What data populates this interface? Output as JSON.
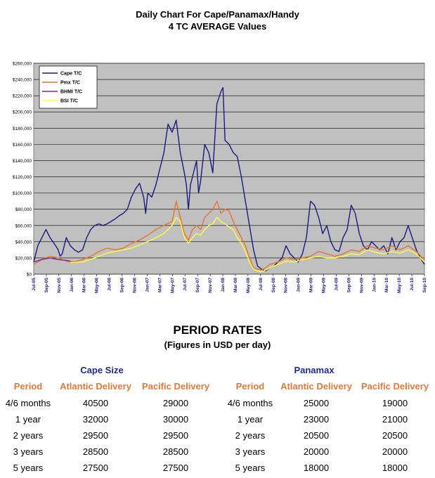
{
  "header": {
    "title_line1": "Daily Chart For Cape/Panamax/Handy",
    "title_line2": "4 TC AVERAGE Values"
  },
  "chart_data": {
    "type": "line",
    "ylim": [
      0,
      260000
    ],
    "y_ticks": [
      0,
      20000,
      40000,
      60000,
      80000,
      100000,
      120000,
      140000,
      160000,
      180000,
      200000,
      220000,
      240000,
      260000
    ],
    "y_tick_labels": [
      "$0",
      "$20,000",
      "$40,000",
      "$60,000",
      "$80,000",
      "$100,000",
      "$120,000",
      "$140,000",
      "$160,000",
      "$180,000",
      "$200,000",
      "$220,000",
      "$240,000",
      "$260,000"
    ],
    "x_tick_labels": [
      "Jul-05",
      "Sep-05",
      "Nov-05",
      "Jan-06",
      "Mar-06",
      "May-06",
      "Jul-06",
      "Sep-06",
      "Nov-06",
      "Jan-07",
      "Mar-07",
      "May-07",
      "Jul-07",
      "Sep-07",
      "Nov-07",
      "Jan-08",
      "Mar-08",
      "May-08",
      "Jul-08",
      "Sep-08",
      "Nov-08",
      "Jan-09",
      "Mar-09",
      "May-09",
      "Jul-09",
      "Sep-09",
      "Nov-09",
      "Jan-10",
      "Mar-10",
      "May-10",
      "Jul-10",
      "Sep-10"
    ],
    "grid": true,
    "legend_position": "top-left",
    "background": "#c0c0c0",
    "series": [
      {
        "name": "Cape T/C",
        "color": "#1a1a80",
        "points": [
          [
            0,
            15000
          ],
          [
            1,
            35000
          ],
          [
            2,
            45000
          ],
          [
            3,
            55000
          ],
          [
            4,
            45000
          ],
          [
            5,
            38000
          ],
          [
            6,
            30000
          ],
          [
            6.5,
            22000
          ],
          [
            7,
            25000
          ],
          [
            8,
            45000
          ],
          [
            9,
            35000
          ],
          [
            10,
            30000
          ],
          [
            11,
            27000
          ],
          [
            12,
            30000
          ],
          [
            13,
            45000
          ],
          [
            14,
            55000
          ],
          [
            15,
            60000
          ],
          [
            16,
            62000
          ],
          [
            17,
            60000
          ],
          [
            18,
            62000
          ],
          [
            19,
            65000
          ],
          [
            20,
            68000
          ],
          [
            21,
            72000
          ],
          [
            22,
            75000
          ],
          [
            23,
            80000
          ],
          [
            24,
            95000
          ],
          [
            25,
            105000
          ],
          [
            26,
            112000
          ],
          [
            27,
            95000
          ],
          [
            27.5,
            75000
          ],
          [
            28,
            100000
          ],
          [
            29,
            95000
          ],
          [
            30,
            110000
          ],
          [
            31,
            130000
          ],
          [
            32,
            150000
          ],
          [
            33,
            185000
          ],
          [
            34,
            175000
          ],
          [
            35,
            190000
          ],
          [
            36,
            150000
          ],
          [
            37,
            125000
          ],
          [
            37.5,
            110000
          ],
          [
            38,
            80000
          ],
          [
            38.5,
            110000
          ],
          [
            39,
            120000
          ],
          [
            40,
            140000
          ],
          [
            40.5,
            100000
          ],
          [
            41,
            115000
          ],
          [
            42,
            160000
          ],
          [
            43,
            150000
          ],
          [
            44,
            125000
          ],
          [
            45,
            210000
          ],
          [
            46,
            225000
          ],
          [
            46.5,
            230000
          ],
          [
            47,
            165000
          ],
          [
            48,
            160000
          ],
          [
            49,
            150000
          ],
          [
            50,
            145000
          ],
          [
            51,
            120000
          ],
          [
            52,
            90000
          ],
          [
            53,
            60000
          ],
          [
            54,
            30000
          ],
          [
            55,
            10000
          ],
          [
            56,
            6000
          ],
          [
            57,
            4000
          ],
          [
            58,
            8000
          ],
          [
            59,
            10000
          ],
          [
            60,
            15000
          ],
          [
            61,
            20000
          ],
          [
            62,
            35000
          ],
          [
            63,
            25000
          ],
          [
            64,
            20000
          ],
          [
            65,
            15000
          ],
          [
            66,
            25000
          ],
          [
            67,
            45000
          ],
          [
            68,
            90000
          ],
          [
            69,
            85000
          ],
          [
            70,
            70000
          ],
          [
            71,
            50000
          ],
          [
            72,
            60000
          ],
          [
            73,
            40000
          ],
          [
            74,
            30000
          ],
          [
            75,
            28000
          ],
          [
            76,
            45000
          ],
          [
            77,
            55000
          ],
          [
            78,
            85000
          ],
          [
            79,
            75000
          ],
          [
            80,
            50000
          ],
          [
            81,
            35000
          ],
          [
            82,
            30000
          ],
          [
            83,
            40000
          ],
          [
            84,
            35000
          ],
          [
            85,
            30000
          ],
          [
            86,
            35000
          ],
          [
            87,
            25000
          ],
          [
            88,
            45000
          ],
          [
            89,
            30000
          ],
          [
            90,
            40000
          ],
          [
            91,
            45000
          ],
          [
            92,
            60000
          ],
          [
            93,
            45000
          ],
          [
            94,
            30000
          ],
          [
            95,
            20000
          ],
          [
            96,
            12000
          ]
        ]
      },
      {
        "name": "Pmx T/C",
        "color": "#e8742a",
        "points": [
          [
            0,
            12000
          ],
          [
            2,
            18000
          ],
          [
            4,
            22000
          ],
          [
            6,
            20000
          ],
          [
            8,
            16000
          ],
          [
            10,
            15000
          ],
          [
            12,
            18000
          ],
          [
            14,
            22000
          ],
          [
            16,
            28000
          ],
          [
            18,
            32000
          ],
          [
            20,
            30000
          ],
          [
            22,
            32000
          ],
          [
            24,
            38000
          ],
          [
            26,
            42000
          ],
          [
            28,
            48000
          ],
          [
            30,
            55000
          ],
          [
            32,
            60000
          ],
          [
            34,
            65000
          ],
          [
            35,
            90000
          ],
          [
            36,
            70000
          ],
          [
            37,
            50000
          ],
          [
            38,
            42000
          ],
          [
            39,
            55000
          ],
          [
            40,
            60000
          ],
          [
            41,
            55000
          ],
          [
            42,
            70000
          ],
          [
            43,
            75000
          ],
          [
            44,
            80000
          ],
          [
            45,
            90000
          ],
          [
            46,
            75000
          ],
          [
            47,
            80000
          ],
          [
            48,
            78000
          ],
          [
            49,
            65000
          ],
          [
            50,
            55000
          ],
          [
            51,
            45000
          ],
          [
            52,
            35000
          ],
          [
            53,
            20000
          ],
          [
            54,
            8000
          ],
          [
            55,
            6000
          ],
          [
            56,
            5000
          ],
          [
            57,
            8000
          ],
          [
            58,
            12000
          ],
          [
            60,
            15000
          ],
          [
            62,
            20000
          ],
          [
            64,
            18000
          ],
          [
            66,
            20000
          ],
          [
            68,
            22000
          ],
          [
            70,
            28000
          ],
          [
            72,
            25000
          ],
          [
            74,
            22000
          ],
          [
            76,
            25000
          ],
          [
            78,
            30000
          ],
          [
            80,
            28000
          ],
          [
            82,
            35000
          ],
          [
            84,
            32000
          ],
          [
            86,
            30000
          ],
          [
            88,
            35000
          ],
          [
            90,
            30000
          ],
          [
            92,
            35000
          ],
          [
            94,
            28000
          ],
          [
            96,
            18000
          ]
        ]
      },
      {
        "name": "BHMI T/C",
        "color": "#7a2c8c",
        "points": [
          [
            0,
            15000
          ],
          [
            2,
            18000
          ],
          [
            4,
            20000
          ],
          [
            6,
            18000
          ],
          [
            8,
            17000
          ],
          [
            9,
            16000
          ]
        ]
      },
      {
        "name": "BSI T/C",
        "color": "#ffff40",
        "points": [
          [
            9,
            14000
          ],
          [
            12,
            15000
          ],
          [
            14,
            18000
          ],
          [
            16,
            22000
          ],
          [
            18,
            26000
          ],
          [
            20,
            28000
          ],
          [
            22,
            30000
          ],
          [
            24,
            32000
          ],
          [
            26,
            36000
          ],
          [
            28,
            40000
          ],
          [
            30,
            45000
          ],
          [
            32,
            50000
          ],
          [
            34,
            60000
          ],
          [
            35,
            70000
          ],
          [
            36,
            65000
          ],
          [
            37,
            45000
          ],
          [
            38,
            38000
          ],
          [
            39,
            45000
          ],
          [
            40,
            50000
          ],
          [
            41,
            48000
          ],
          [
            42,
            55000
          ],
          [
            43,
            60000
          ],
          [
            44,
            62000
          ],
          [
            45,
            70000
          ],
          [
            46,
            65000
          ],
          [
            47,
            62000
          ],
          [
            48,
            58000
          ],
          [
            49,
            55000
          ],
          [
            50,
            45000
          ],
          [
            51,
            38000
          ],
          [
            52,
            28000
          ],
          [
            53,
            15000
          ],
          [
            54,
            6000
          ],
          [
            55,
            4000
          ],
          [
            56,
            3000
          ],
          [
            57,
            5000
          ],
          [
            58,
            8000
          ],
          [
            60,
            12000
          ],
          [
            62,
            16000
          ],
          [
            64,
            15000
          ],
          [
            66,
            18000
          ],
          [
            68,
            20000
          ],
          [
            70,
            22000
          ],
          [
            72,
            20000
          ],
          [
            74,
            20000
          ],
          [
            76,
            22000
          ],
          [
            78,
            25000
          ],
          [
            80,
            24000
          ],
          [
            82,
            30000
          ],
          [
            84,
            27000
          ],
          [
            86,
            25000
          ],
          [
            88,
            28000
          ],
          [
            90,
            26000
          ],
          [
            92,
            30000
          ],
          [
            94,
            25000
          ],
          [
            96,
            15000
          ]
        ]
      }
    ]
  },
  "rates": {
    "title": "PERIOD RATES",
    "subtitle": "(Figures in USD per day)",
    "cape": {
      "heading": "Cape Size",
      "col_period": "Period",
      "col_atlantic": "Atlantic Delivery",
      "col_pacific": "Pacific Delivery",
      "rows": [
        {
          "period": "4/6 months",
          "atlantic": "40500",
          "pacific": "29000"
        },
        {
          "period": "1 year",
          "atlantic": "32000",
          "pacific": "30000"
        },
        {
          "period": "2 years",
          "atlantic": "29500",
          "pacific": "29500"
        },
        {
          "period": "3 years",
          "atlantic": "28500",
          "pacific": "28500"
        },
        {
          "period": "5 years",
          "atlantic": "27500",
          "pacific": "27500"
        }
      ]
    },
    "panamax": {
      "heading": "Panamax",
      "col_period": "Period",
      "col_atlantic": "Atlantic Delivery",
      "col_pacific": "Pacific Delivery",
      "rows": [
        {
          "period": "4/6 months",
          "atlantic": "25000",
          "pacific": "19000"
        },
        {
          "period": "1 year",
          "atlantic": "23000",
          "pacific": "21000"
        },
        {
          "period": "2 years",
          "atlantic": "20500",
          "pacific": "20500"
        },
        {
          "period": "3 years",
          "atlantic": "20000",
          "pacific": "20000"
        },
        {
          "period": "5 years",
          "atlantic": "18000",
          "pacific": "18000"
        }
      ]
    }
  }
}
